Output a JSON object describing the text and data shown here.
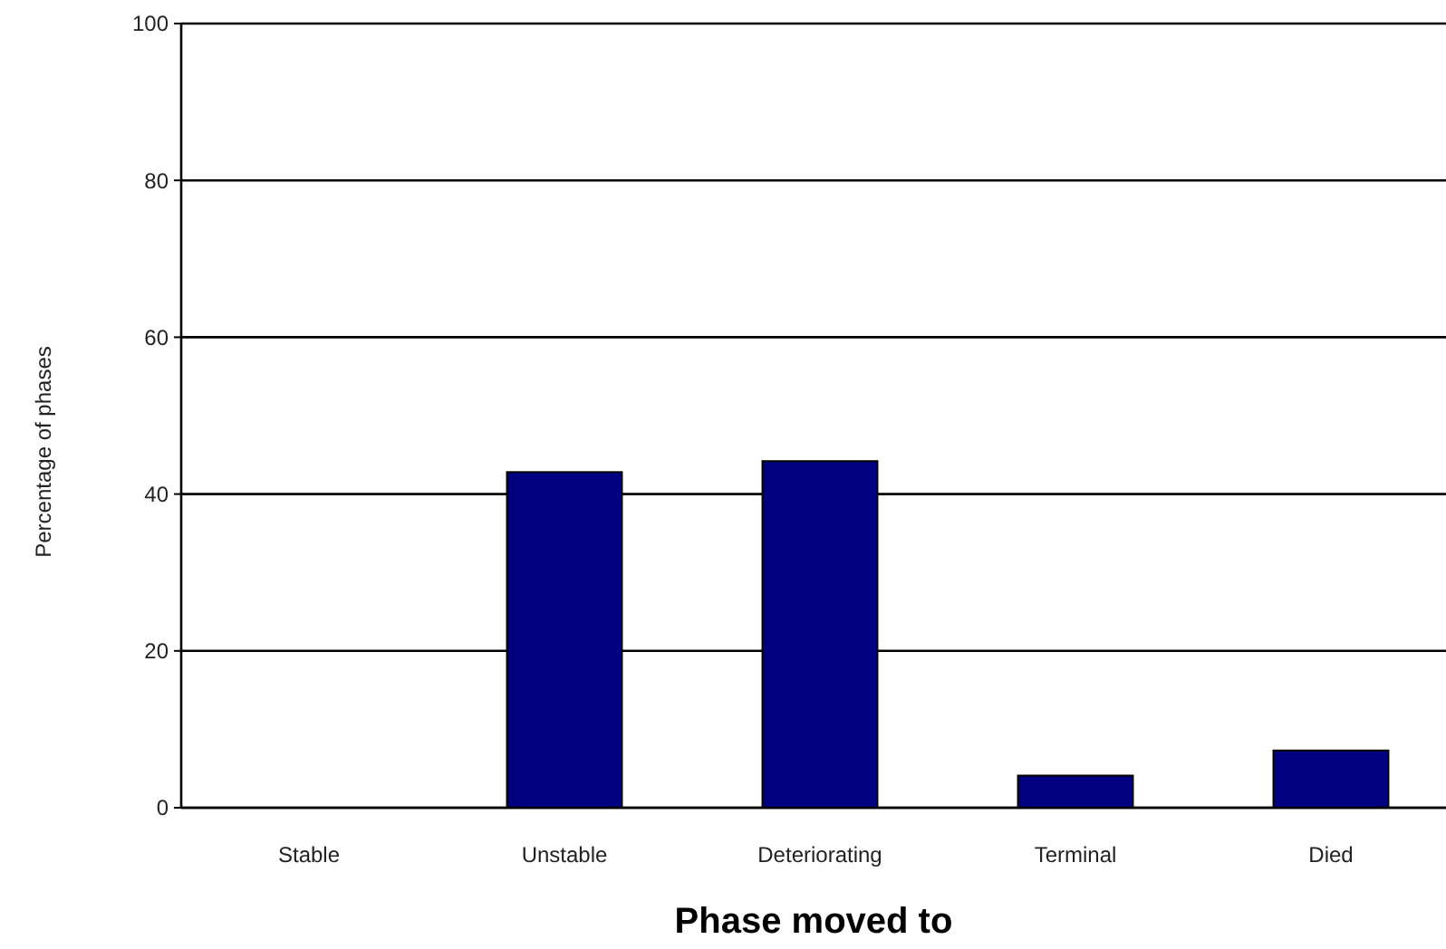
{
  "chart_data": {
    "type": "bar",
    "xlabel": "Phase moved to",
    "ylabel": "Percentage of phases",
    "categories": [
      "Stable",
      "Unstable",
      "Deteriorating",
      "Terminal",
      "Died"
    ],
    "values": [
      0,
      42.8,
      44.2,
      4.1,
      7.3
    ],
    "color": "#000080",
    "ylim": [
      0,
      100
    ],
    "yticks": [
      0,
      20,
      40,
      60,
      80,
      100
    ],
    "grid": "y"
  }
}
